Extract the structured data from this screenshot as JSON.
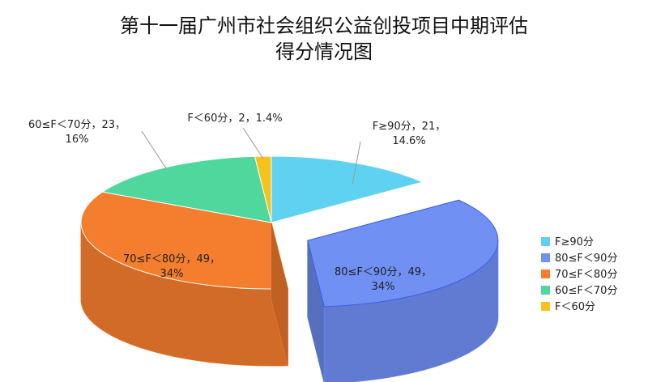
{
  "chart_data": {
    "type": "pie3d",
    "title": "第十一届广州市社会组织公益创投项目中期评估\n得分情况图",
    "categories": [
      "F≥90分",
      "80≤F＜90分",
      "70≤F＜80分",
      "60≤F＜70分",
      "F＜60分"
    ],
    "values": [
      21,
      49,
      49,
      23,
      2
    ],
    "value_labels": [
      "F≥90分，21，\n14.6%",
      "80≤F＜90分，49，\n34%",
      "70≤F＜80分，49，\n34%",
      "60≤F＜70分，23，\n16%",
      "F＜60分，2，1.4%"
    ],
    "colors": [
      "#5fd2f2",
      "#7090f4",
      "#f57d2e",
      "#4fd79e",
      "#f6c21c"
    ]
  }
}
